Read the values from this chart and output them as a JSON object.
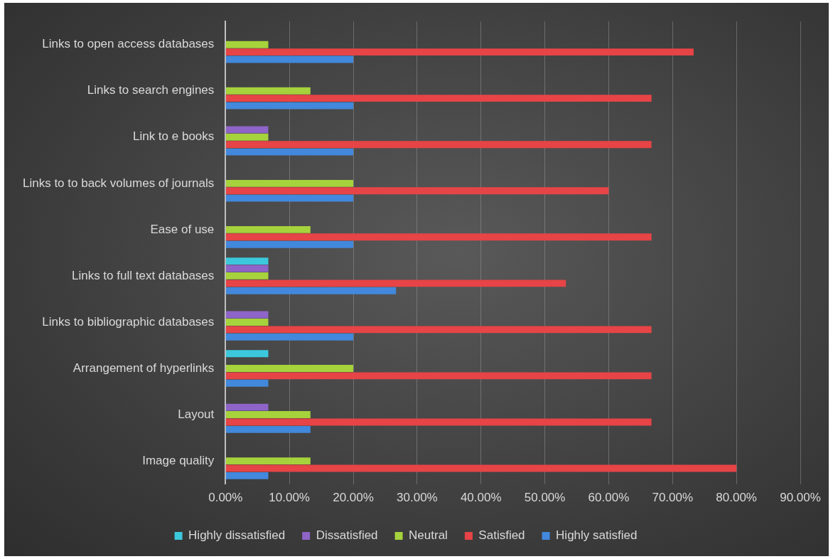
{
  "chart_data": {
    "type": "bar",
    "orientation": "horizontal",
    "categories": [
      "Links to open access databases",
      "Links to search engines",
      "Link to e books",
      "Links to to back volumes of journals",
      "Ease of use",
      "Links to full text databases",
      "Links to bibliographic databases",
      "Arrangement of hyperlinks",
      "Layout",
      "Image quality"
    ],
    "series": [
      {
        "name": "Highly dissatisfied",
        "color": "#3cc8dc",
        "values": [
          0,
          0,
          0,
          0,
          0,
          6.7,
          0,
          6.7,
          0,
          0
        ]
      },
      {
        "name": "Dissatisfied",
        "color": "#8e64c8",
        "values": [
          0,
          0,
          6.7,
          0,
          0,
          6.7,
          6.7,
          0,
          6.7,
          0
        ]
      },
      {
        "name": "Neutral",
        "color": "#a6d23c",
        "values": [
          6.7,
          13.3,
          6.7,
          20,
          13.3,
          6.7,
          6.7,
          20,
          13.3,
          13.3
        ]
      },
      {
        "name": "Satisfied",
        "color": "#e64446",
        "values": [
          73.3,
          66.7,
          66.7,
          60,
          66.7,
          53.3,
          66.7,
          66.7,
          66.7,
          80
        ]
      },
      {
        "name": "Highly satisfied",
        "color": "#4288dc",
        "values": [
          20,
          20,
          20,
          20,
          20,
          26.7,
          20,
          6.7,
          13.3,
          6.7
        ]
      }
    ],
    "xlim": [
      0,
      90
    ],
    "xticks": [
      {
        "value": 0,
        "label": "0.00%"
      },
      {
        "value": 10,
        "label": "10.00%"
      },
      {
        "value": 20,
        "label": "20.00%"
      },
      {
        "value": 30,
        "label": "30.00%"
      },
      {
        "value": 40,
        "label": "40.00%"
      },
      {
        "value": 50,
        "label": "50.00%"
      },
      {
        "value": 60,
        "label": "60.00%"
      },
      {
        "value": 70,
        "label": "70.00%"
      },
      {
        "value": 80,
        "label": "80.00%"
      },
      {
        "value": 90,
        "label": "90.00%"
      }
    ],
    "grid": "x",
    "legend": "bottom"
  }
}
